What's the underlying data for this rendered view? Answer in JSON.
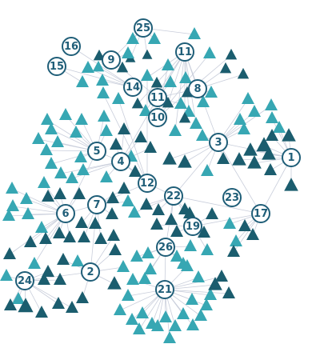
{
  "graph": {
    "colors": {
      "teal": "#37a7b3",
      "dark": "#1b5d6e",
      "edge": "#c9cedb",
      "hub_stroke": "#1f5e78"
    },
    "hubs": [
      "1",
      "2",
      "3",
      "4",
      "5",
      "6",
      "7",
      "8",
      "9",
      "10",
      "11",
      "11",
      "12",
      "14",
      "15",
      "16",
      "17",
      "19",
      "21",
      "22",
      "23",
      "24",
      "25",
      "26"
    ],
    "leaf_shape": "triangle"
  }
}
